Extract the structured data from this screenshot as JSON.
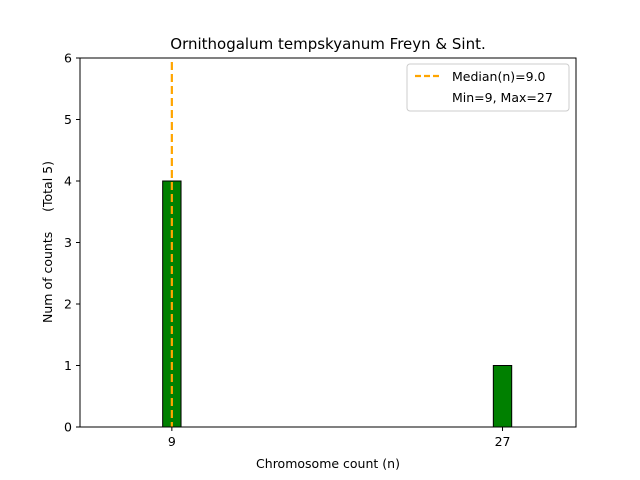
{
  "chart_data": {
    "type": "bar",
    "title": "Ornithogalum tempskyanum Freyn & Sint.",
    "xlabel": "Chromosome count (n)",
    "ylabel": "Num of counts     (Total 5)",
    "xlim": [
      4,
      31
    ],
    "ylim": [
      0,
      6
    ],
    "yticks": [
      0,
      1,
      2,
      3,
      4,
      5,
      6
    ],
    "xticks": [
      9,
      27
    ],
    "bar_width": 1,
    "bars": [
      {
        "x": 9,
        "count": 4
      },
      {
        "x": 27,
        "count": 1
      }
    ],
    "median_line": {
      "x": 9.0,
      "label": "Median(n)=9.0",
      "color": "#ffa500"
    },
    "legend": {
      "position": "top-right",
      "entries": [
        "Median(n)=9.0",
        "Min=9, Max=27"
      ]
    },
    "bar_color": "#008000",
    "total": 5
  }
}
